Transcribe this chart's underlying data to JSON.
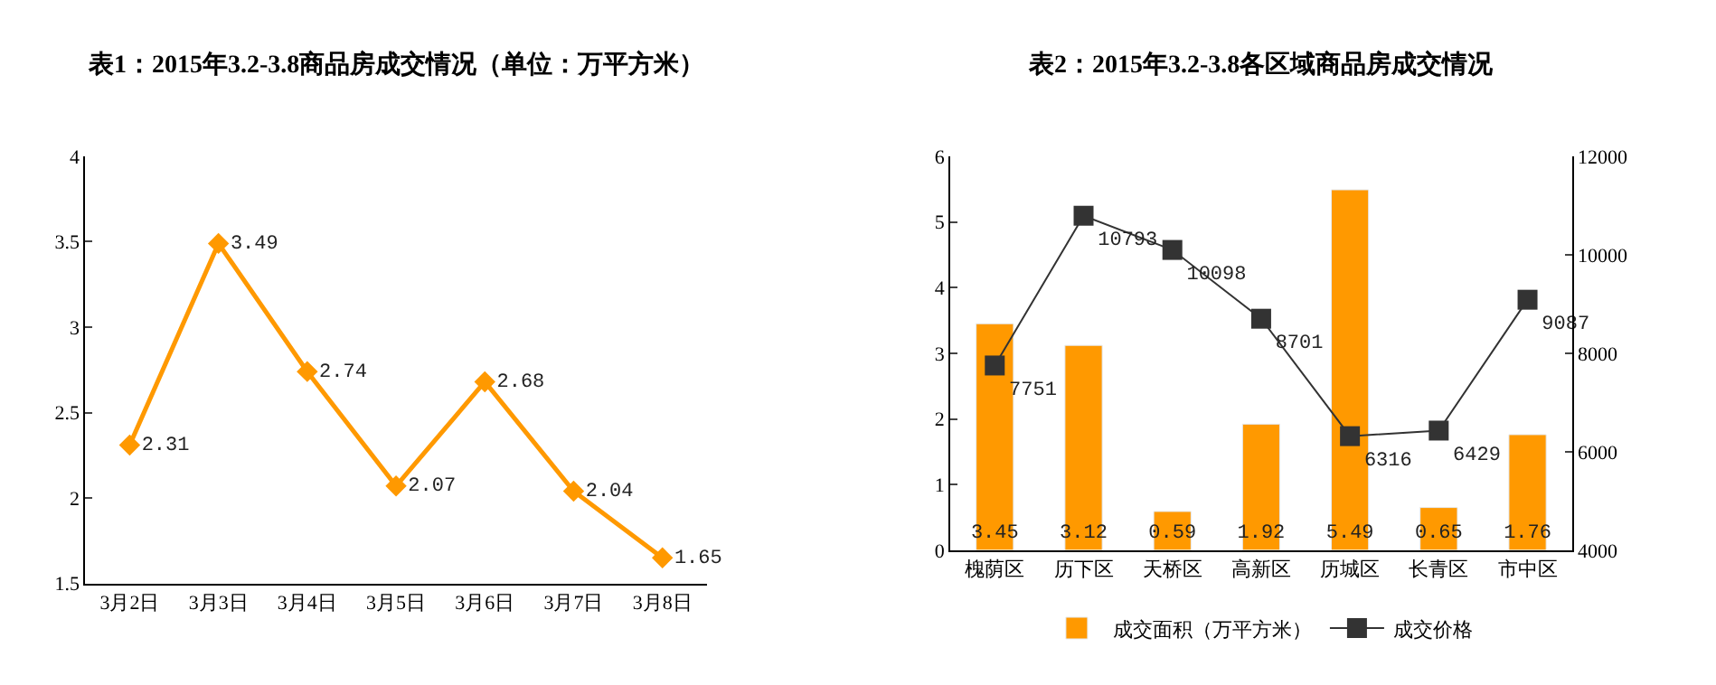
{
  "chart_data": [
    {
      "type": "line",
      "title": "表1：2015年3.2-3.8商品房成交情况（单位：万平方米）",
      "categories": [
        "3月2日",
        "3月3日",
        "3月4日",
        "3月5日",
        "3月6日",
        "3月7日",
        "3月8日"
      ],
      "values": [
        2.31,
        3.49,
        2.74,
        2.07,
        2.68,
        2.04,
        1.65
      ],
      "color": "#ff9900",
      "ylim": [
        1.5,
        4
      ],
      "yticks": [
        1.5,
        2,
        2.5,
        3,
        3.5,
        4
      ],
      "marker": "diamond",
      "data_labels": true,
      "legend": false
    },
    {
      "type": "bar",
      "title": "表2：2015年3.2-3.8各区域商品房成交情况",
      "categories": [
        "槐荫区",
        "历下区",
        "天桥区",
        "高新区",
        "历城区",
        "长青区",
        "市中区"
      ],
      "series": [
        {
          "name": "成交面积（万平方米）",
          "color": "#ff9900",
          "values": [
            3.45,
            3.12,
            0.59,
            1.92,
            5.49,
            0.65,
            1.76
          ]
        },
        {
          "name": "成交价格",
          "type": "line",
          "axis": "y2",
          "marker": "square",
          "color": "#333333",
          "values": [
            7751,
            10793,
            10098,
            8701,
            6316,
            6429,
            9087
          ]
        }
      ],
      "ylim": [
        0,
        6
      ],
      "yticks": [
        0,
        1,
        2,
        3,
        4,
        5,
        6
      ],
      "y2lim": [
        4000,
        12000
      ],
      "y2ticks": [
        4000,
        6000,
        8000,
        10000,
        12000
      ],
      "data_labels": true,
      "legend": "bottom"
    }
  ]
}
